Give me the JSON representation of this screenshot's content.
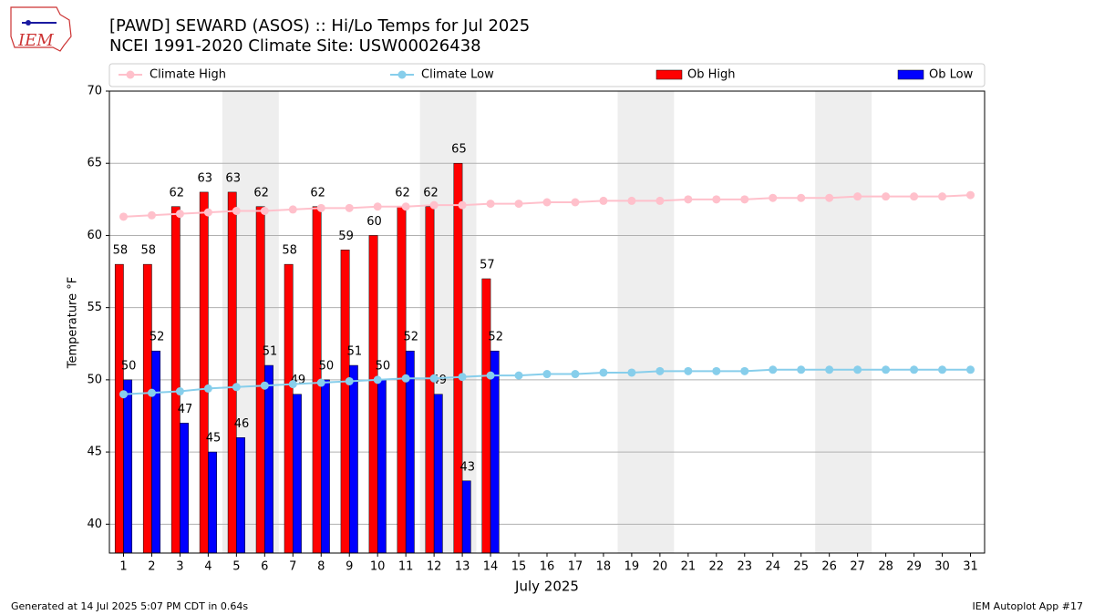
{
  "chart_data": {
    "type": "bar_line",
    "title": "[PAWD] SEWARD (ASOS) :: Hi/Lo Temps for Jul 2025",
    "subtitle": "NCEI 1991-2020 Climate Site: USW00026438",
    "y_label": "Temperature °F",
    "x_label": "July 2025",
    "logo_text": "IEM",
    "footer_left": "Generated at 14 Jul 2025 5:07 PM CDT in 0.64s",
    "footer_right": "IEM Autoplot App #17",
    "x": [
      1,
      2,
      3,
      4,
      5,
      6,
      7,
      8,
      9,
      10,
      11,
      12,
      13,
      14,
      15,
      16,
      17,
      18,
      19,
      20,
      21,
      22,
      23,
      24,
      25,
      26,
      27,
      28,
      29,
      30,
      31
    ],
    "xlim": [
      0.5,
      31.5
    ],
    "xticks": [
      1,
      2,
      3,
      4,
      5,
      6,
      7,
      8,
      9,
      10,
      11,
      12,
      13,
      14,
      15,
      16,
      17,
      18,
      19,
      20,
      21,
      22,
      23,
      24,
      25,
      26,
      27,
      28,
      29,
      30,
      31
    ],
    "ylim": [
      38,
      70
    ],
    "yticks": [
      40,
      45,
      50,
      55,
      60,
      65,
      70
    ],
    "grid": true,
    "shaded_spans": [
      [
        4.5,
        6.5
      ],
      [
        11.5,
        13.5
      ],
      [
        18.5,
        20.5
      ],
      [
        25.5,
        27.5
      ]
    ],
    "series": [
      {
        "name": "Climate High",
        "kind": "line",
        "color": "#ffc0cb",
        "values": [
          61.3,
          61.4,
          61.5,
          61.6,
          61.7,
          61.7,
          61.8,
          61.9,
          61.9,
          62.0,
          62.0,
          62.1,
          62.1,
          62.2,
          62.2,
          62.3,
          62.3,
          62.4,
          62.4,
          62.4,
          62.5,
          62.5,
          62.5,
          62.6,
          62.6,
          62.6,
          62.7,
          62.7,
          62.7,
          62.7,
          62.8
        ]
      },
      {
        "name": "Climate Low",
        "kind": "line",
        "color": "#87ceeb",
        "values": [
          49.0,
          49.1,
          49.2,
          49.4,
          49.5,
          49.6,
          49.7,
          49.8,
          49.9,
          50.0,
          50.1,
          50.1,
          50.2,
          50.3,
          50.3,
          50.4,
          50.4,
          50.5,
          50.5,
          50.6,
          50.6,
          50.6,
          50.6,
          50.7,
          50.7,
          50.7,
          50.7,
          50.7,
          50.7,
          50.7,
          50.7
        ]
      },
      {
        "name": "Ob High",
        "kind": "bar",
        "color": "#ff0000",
        "values": [
          58,
          58,
          62,
          63,
          63,
          62,
          58,
          62,
          59,
          60,
          62,
          62,
          65,
          57,
          null,
          null,
          null,
          null,
          null,
          null,
          null,
          null,
          null,
          null,
          null,
          null,
          null,
          null,
          null,
          null,
          null
        ]
      },
      {
        "name": "Ob Low",
        "kind": "bar",
        "color": "#0000ff",
        "values": [
          50,
          52,
          47,
          45,
          46,
          51,
          49,
          50,
          51,
          50,
          52,
          49,
          43,
          52,
          null,
          null,
          null,
          null,
          null,
          null,
          null,
          null,
          null,
          null,
          null,
          null,
          null,
          null,
          null,
          null,
          null
        ]
      }
    ]
  }
}
